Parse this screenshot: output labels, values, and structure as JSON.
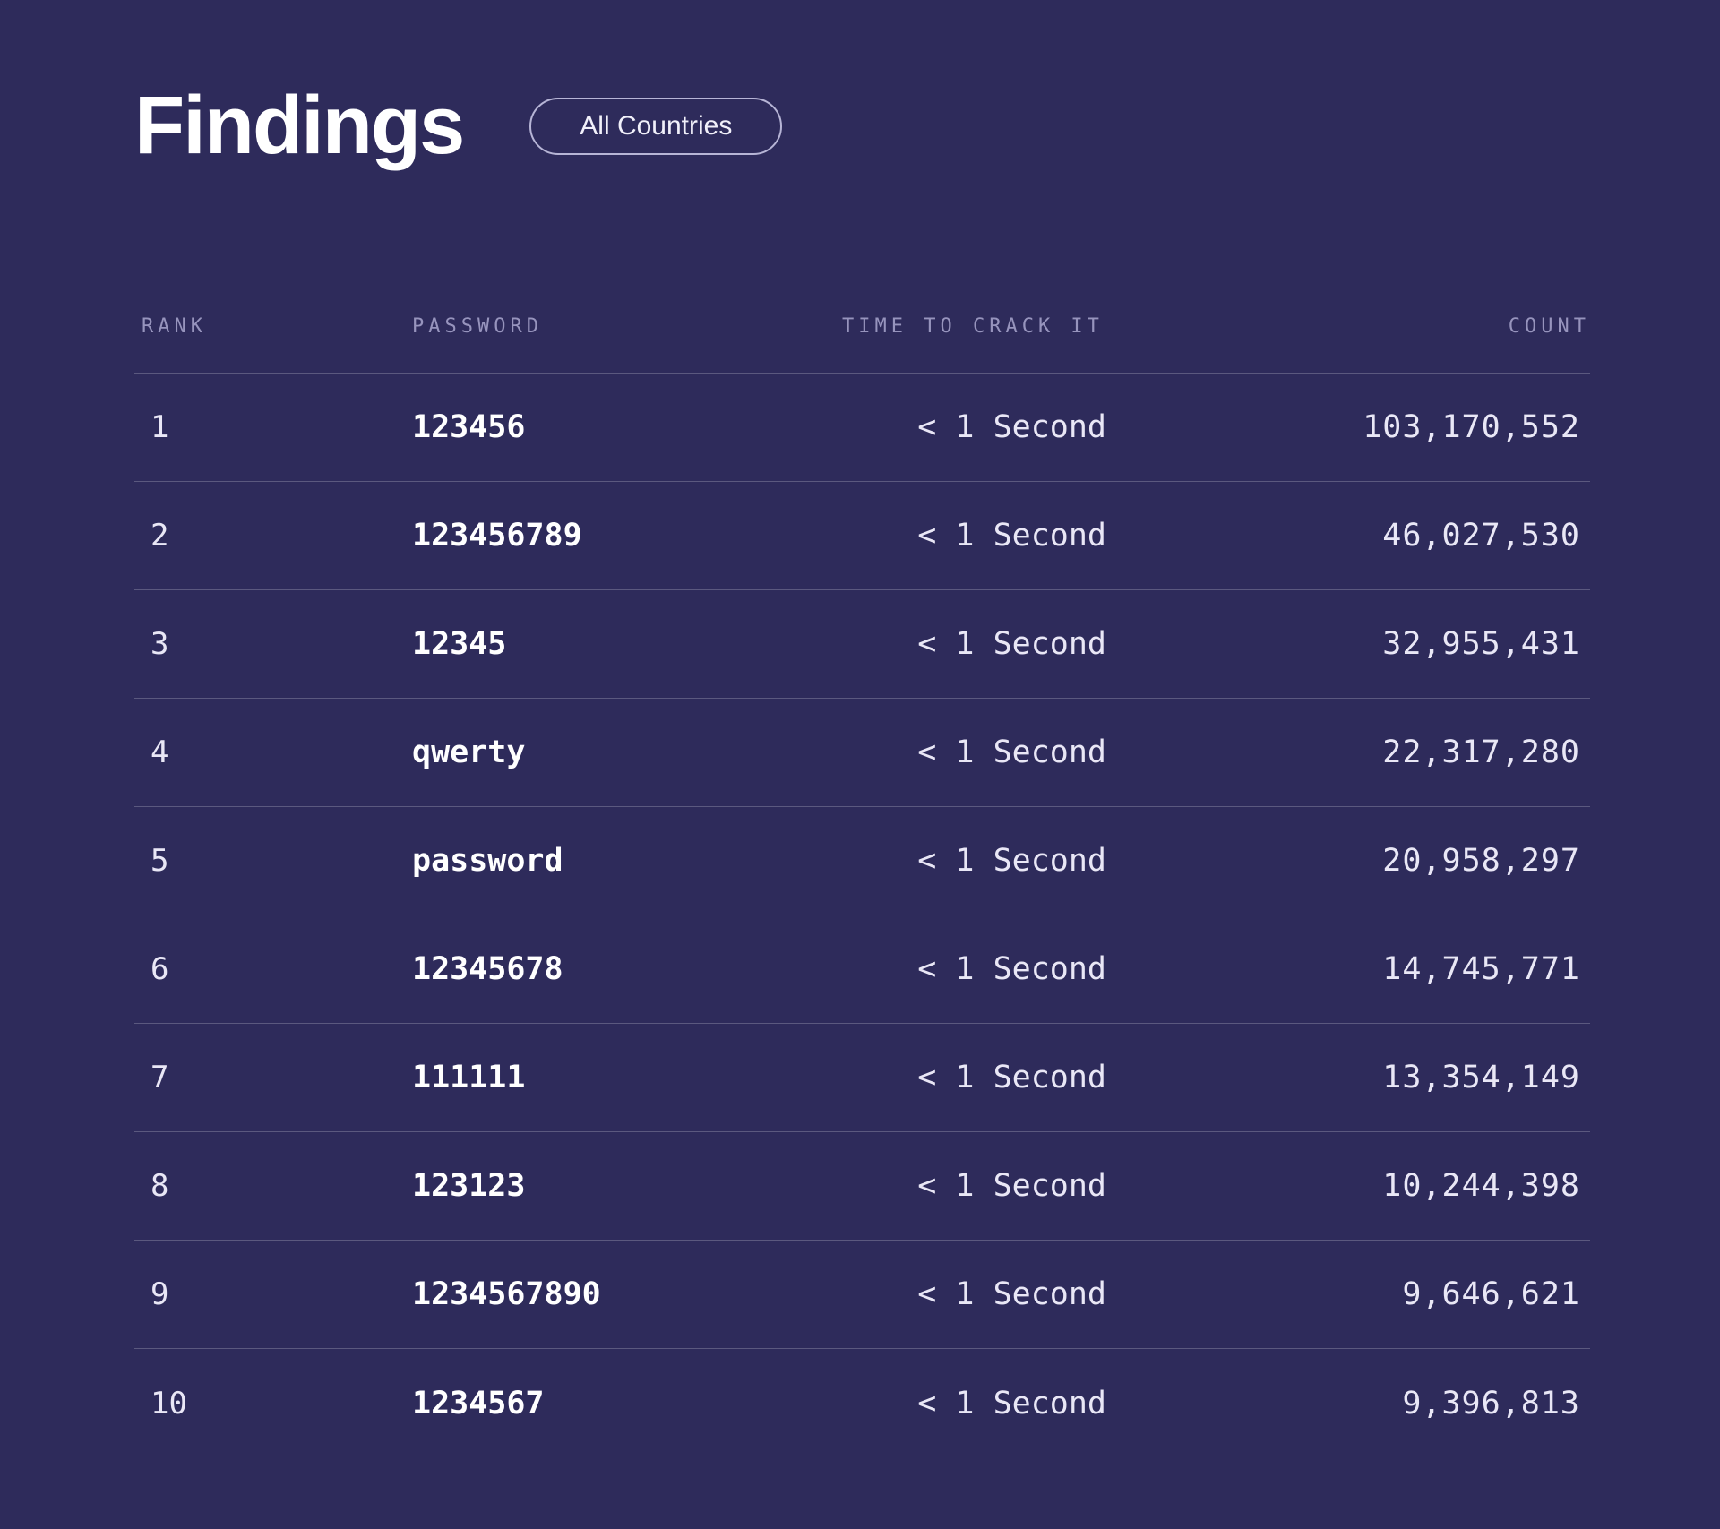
{
  "header": {
    "title": "Findings",
    "filter_button_label": "All Countries"
  },
  "table": {
    "columns": {
      "rank": "RANK",
      "password": "PASSWORD",
      "time": "TIME TO CRACK IT",
      "count": "COUNT"
    },
    "rows": [
      {
        "rank": "1",
        "password": "123456",
        "time": "< 1 Second",
        "count": "103,170,552"
      },
      {
        "rank": "2",
        "password": "123456789",
        "time": "< 1 Second",
        "count": "46,027,530"
      },
      {
        "rank": "3",
        "password": "12345",
        "time": "< 1 Second",
        "count": "32,955,431"
      },
      {
        "rank": "4",
        "password": "qwerty",
        "time": "< 1 Second",
        "count": "22,317,280"
      },
      {
        "rank": "5",
        "password": "password",
        "time": "< 1 Second",
        "count": "20,958,297"
      },
      {
        "rank": "6",
        "password": "12345678",
        "time": "< 1 Second",
        "count": "14,745,771"
      },
      {
        "rank": "7",
        "password": "111111",
        "time": "< 1 Second",
        "count": "13,354,149"
      },
      {
        "rank": "8",
        "password": "123123",
        "time": "< 1 Second",
        "count": "10,244,398"
      },
      {
        "rank": "9",
        "password": "1234567890",
        "time": "< 1 Second",
        "count": "9,646,621"
      },
      {
        "rank": "10",
        "password": "1234567",
        "time": "< 1 Second",
        "count": "9,396,813"
      }
    ]
  },
  "colors": {
    "background": "#2e2b5b",
    "row_divider": "rgba(255,255,255,0.22)",
    "header_text": "#9794bd",
    "body_text": "#e9e7f6",
    "password_text": "#ffffff",
    "button_border": "#b7b5d6",
    "title_text": "#ffffff"
  }
}
